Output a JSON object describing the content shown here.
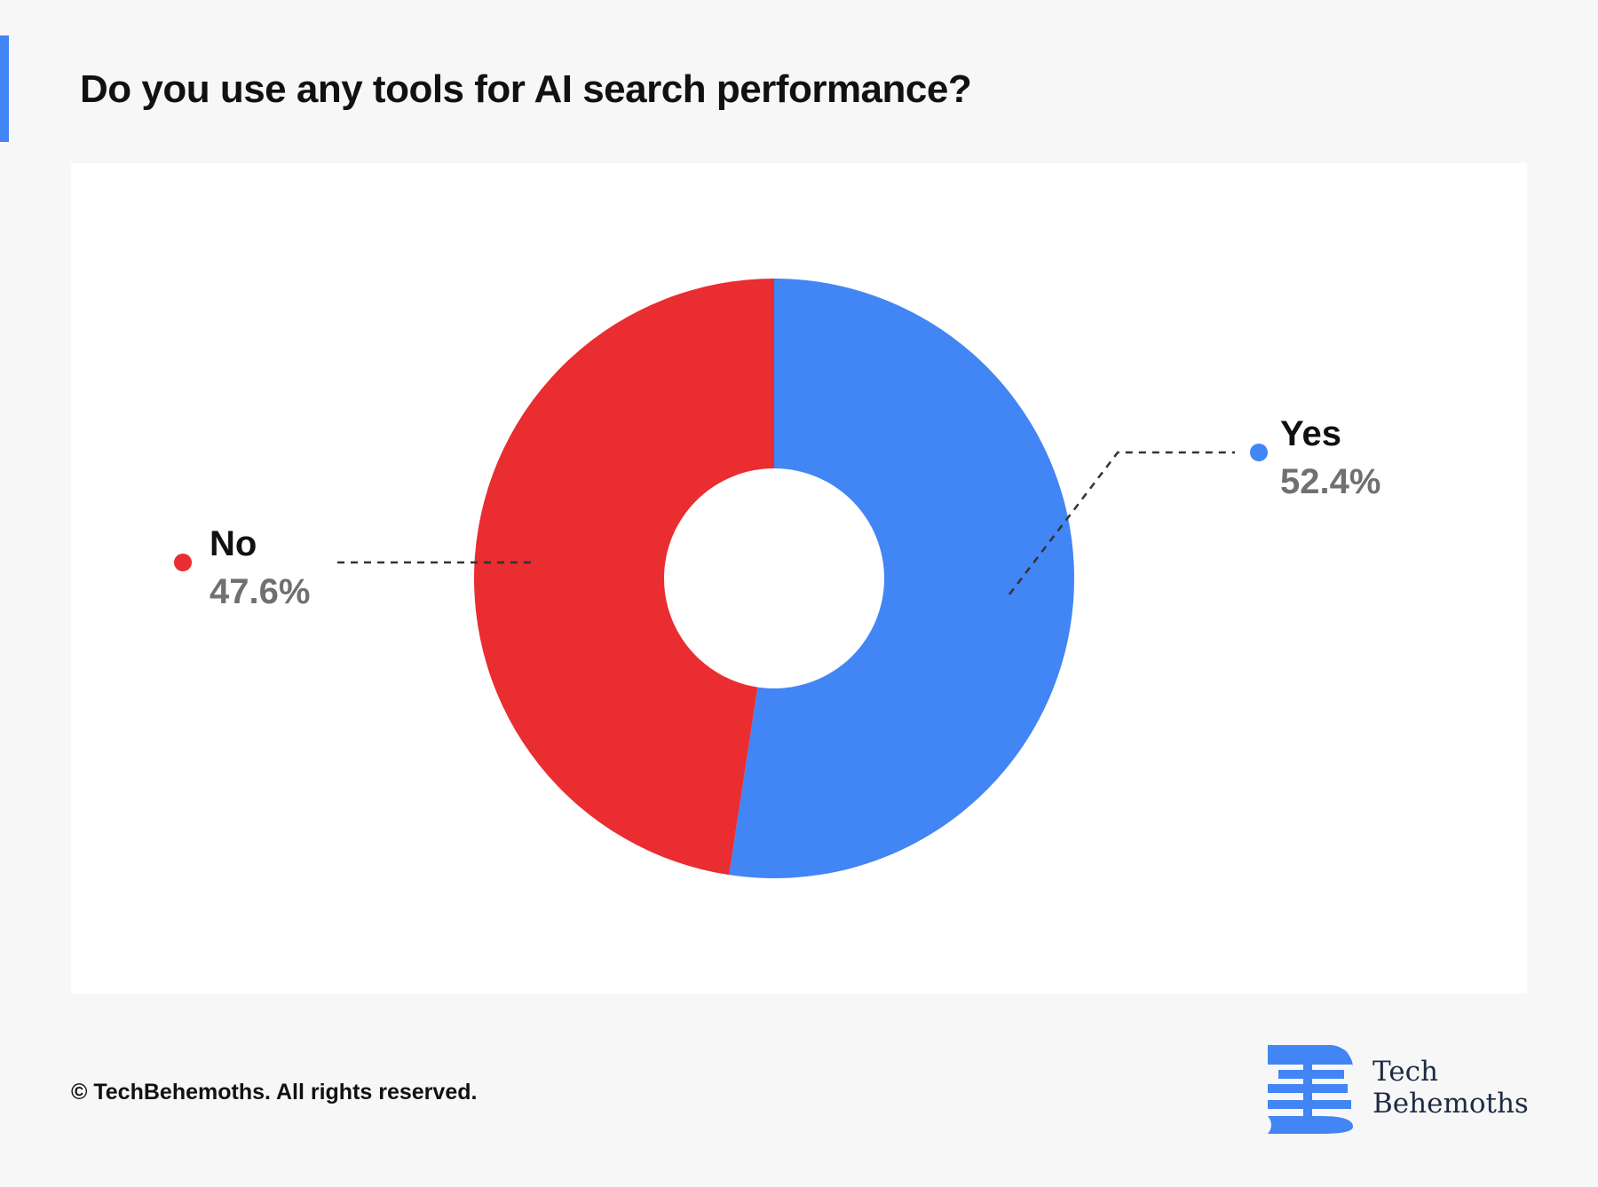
{
  "title": "Do you use any tools for AI search performance?",
  "footer": {
    "copyright": "© TechBehemoths. All rights reserved."
  },
  "logo": {
    "line1": "Tech",
    "line2": "Behemoths",
    "icon": "techbehemoths-b-icon",
    "color": "#4285f4"
  },
  "colors": {
    "accent": "#4285f4",
    "yes": "#4285f4",
    "no": "#e92d30",
    "value_text": "#707070",
    "label_text": "#111111"
  },
  "chart_data": {
    "type": "pie",
    "donut": true,
    "title": "Do you use any tools for AI search performance?",
    "slices": [
      {
        "label": "Yes",
        "value": 52.4,
        "display": "52.4%",
        "color": "#4285f4"
      },
      {
        "label": "No",
        "value": 47.6,
        "display": "47.6%",
        "color": "#e92d30"
      }
    ]
  }
}
